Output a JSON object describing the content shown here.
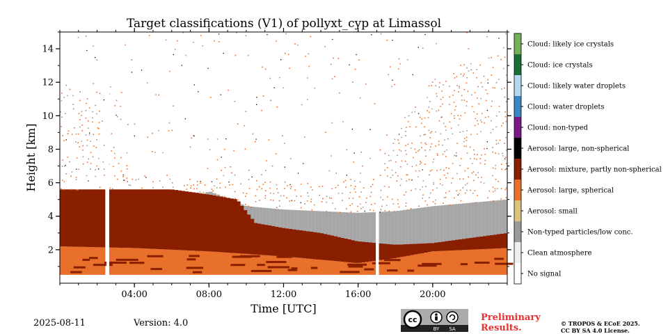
{
  "chart_data": {
    "type": "heatmap",
    "title": "Target classifications (V1) of pollyxt_cyp at Limassol",
    "xlabel": "Time [UTC]",
    "ylabel": "Height [km]",
    "xlim_hours": [
      0,
      24
    ],
    "ylim_km": [
      0,
      15
    ],
    "x_ticks": [
      {
        "hours": 4,
        "label": "04:00"
      },
      {
        "hours": 8,
        "label": "08:00"
      },
      {
        "hours": 12,
        "label": "12:00"
      },
      {
        "hours": 16,
        "label": "16:00"
      },
      {
        "hours": 20,
        "label": "20:00"
      }
    ],
    "y_ticks": [
      {
        "km": 2,
        "label": "2"
      },
      {
        "km": 4,
        "label": "4"
      },
      {
        "km": 6,
        "label": "6"
      },
      {
        "km": 8,
        "label": "8"
      },
      {
        "km": 10,
        "label": "10"
      },
      {
        "km": 12,
        "label": "12"
      },
      {
        "km": 14,
        "label": "14"
      }
    ],
    "classes": [
      {
        "label": "Cloud: likely ice crystals",
        "color": "#74b05a"
      },
      {
        "label": "Cloud: ice crystals",
        "color": "#1a6e35"
      },
      {
        "label": "Cloud: likely water droplets",
        "color": "#b3d8f2"
      },
      {
        "label": "Cloud: water droplets",
        "color": "#3b87c5"
      },
      {
        "label": "Cloud: non-typed",
        "color": "#7b1a86"
      },
      {
        "label": "Aerosol: large, non-spherical",
        "color": "#000000"
      },
      {
        "label": "Aerosol: mixture, partly non-spherical",
        "color": "#8a1f00"
      },
      {
        "label": "Aerosol: large, spherical",
        "color": "#e8702a"
      },
      {
        "label": "Aerosol: small",
        "color": "#dcc27a"
      },
      {
        "label": "Non-typed particles/low conc.",
        "color": "#9a9a9a"
      },
      {
        "label": "Clean atmosphere",
        "color": "#eeeeee"
      },
      {
        "label": "No signal",
        "color": "#ffffff"
      }
    ],
    "no_signal_gaps_hours": [
      [
        2.5,
        2.65
      ],
      [
        16.95,
        17.1
      ]
    ],
    "layers": {
      "orange_lower_top_km": [
        [
          0,
          2.2
        ],
        [
          4,
          2.1
        ],
        [
          8,
          1.9
        ],
        [
          12,
          1.6
        ],
        [
          16,
          1.2
        ],
        [
          18,
          1.5
        ],
        [
          20,
          1.9
        ],
        [
          24,
          2.1
        ]
      ],
      "aerosol_mixture_top_km": [
        [
          0,
          5.6
        ],
        [
          6,
          5.6
        ],
        [
          8,
          5.3
        ],
        [
          9.5,
          5.0
        ],
        [
          10.5,
          3.6
        ],
        [
          12,
          3.3
        ],
        [
          14,
          3.0
        ],
        [
          16,
          2.5
        ],
        [
          18,
          2.3
        ],
        [
          20,
          2.4
        ],
        [
          24,
          3.0
        ]
      ],
      "nontyped_top_km": [
        [
          0,
          0
        ],
        [
          8,
          5.5
        ],
        [
          10,
          4.6
        ],
        [
          12,
          4.4
        ],
        [
          16,
          4.2
        ],
        [
          18,
          4.3
        ],
        [
          20,
          4.6
        ],
        [
          24,
          5.0
        ]
      ],
      "speckle_orange_top_km": [
        [
          0,
          12
        ],
        [
          2,
          10.5
        ],
        [
          3,
          8
        ],
        [
          4,
          6
        ],
        [
          17,
          6
        ],
        [
          18,
          9
        ],
        [
          20,
          12
        ],
        [
          24,
          14
        ]
      ]
    }
  },
  "footer": {
    "date": "2025-08-11",
    "version": "Version: 4.0",
    "preliminary_line1": "Preliminary",
    "preliminary_line2": "Results.",
    "copyright_line1": "© TROPOS & ECoE 2025.",
    "copyright_line2": "CC BY SA 4.0 License.",
    "license_badge": {
      "cc": "cc",
      "by": "BY",
      "sa": "SA"
    }
  }
}
